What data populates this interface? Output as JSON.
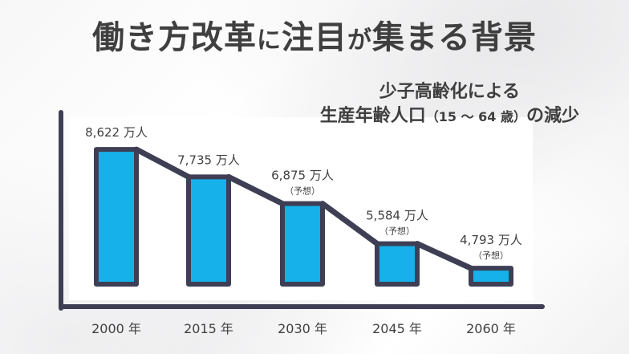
{
  "headline": {
    "part1": "働き方改革",
    "part2": "に",
    "part3": "注目",
    "part4": "が",
    "part5": "集まる背景"
  },
  "subtitle": {
    "line1": "少子高齢化による",
    "line2a": "生産年齢人口",
    "line2b": "（15 〜 64 歳）",
    "line2c": "の減少"
  },
  "colors": {
    "bar_fill": "#16b1ea",
    "bar_stroke": "#3e3f55",
    "line": "#3e3f55",
    "axis": "#3e3f55",
    "text": "#3f3f3f"
  },
  "chart_data": {
    "type": "bar",
    "categories": [
      "2000 年",
      "2015 年",
      "2030 年",
      "2045 年",
      "2060 年"
    ],
    "values": [
      8622,
      7735,
      6875,
      5584,
      4793
    ],
    "value_labels": [
      "8,622 万人",
      "7,735 万人",
      "6,875 万人",
      "5,584 万人",
      "4,793 万人"
    ],
    "notes": [
      "",
      "",
      "（予想）",
      "（予想）",
      "（予想）"
    ],
    "ylim": [
      3000,
      9000
    ],
    "grid": false,
    "legend": "none"
  }
}
